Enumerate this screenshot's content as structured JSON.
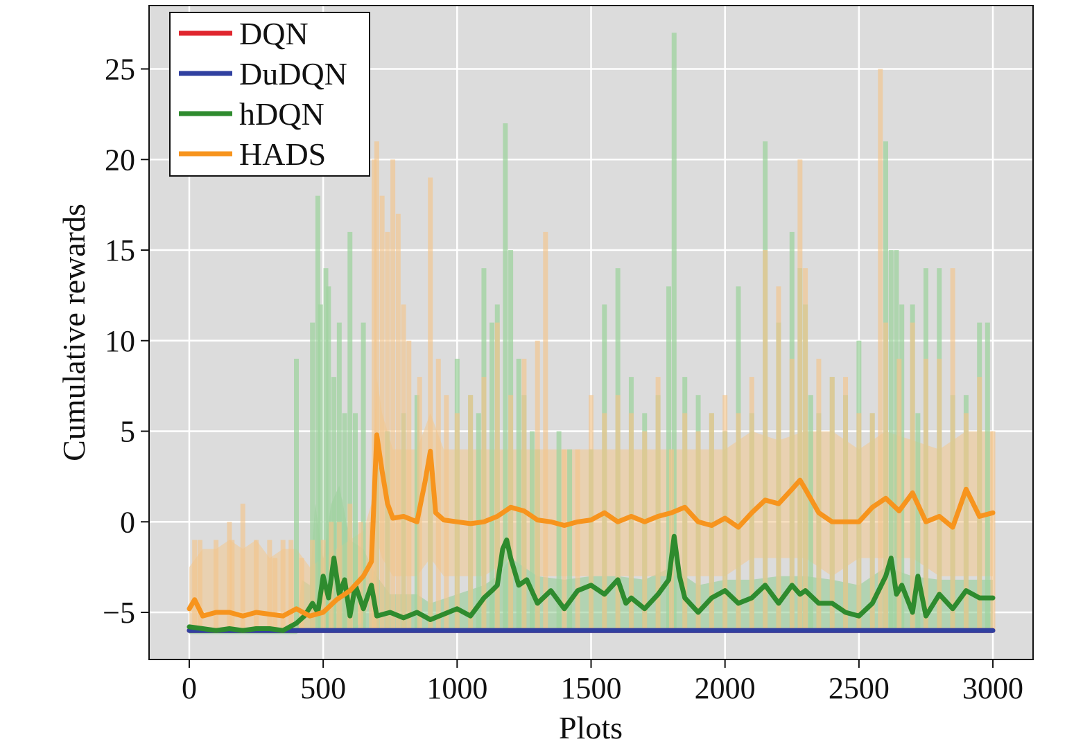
{
  "chart_data": {
    "type": "line",
    "title": "",
    "xlabel": "Plots",
    "ylabel": "Cumulative rewards",
    "xlim": [
      -150,
      3150
    ],
    "ylim": [
      -7.6,
      28.5
    ],
    "xticks": [
      0,
      500,
      1000,
      1500,
      2000,
      2500,
      3000
    ],
    "yticks": [
      -5,
      0,
      5,
      10,
      15,
      20,
      25
    ],
    "xtick_labels": [
      "0",
      "500",
      "1000",
      "1500",
      "2000",
      "2500",
      "3000"
    ],
    "ytick_labels": [
      "−5",
      "0",
      "5",
      "10",
      "15",
      "20",
      "25"
    ],
    "grid": true,
    "legend_position": "top-left",
    "background": "#dcdcdc",
    "series": [
      {
        "name": "DQN",
        "color": "#e0262e",
        "x": [
          0,
          3000
        ],
        "y": [
          -6.0,
          -6.0
        ]
      },
      {
        "name": "DuDQN",
        "color": "#3040a0",
        "x": [
          0,
          3000
        ],
        "y": [
          -6.0,
          -6.0
        ]
      },
      {
        "name": "hDQN",
        "color": "#2e8b2e",
        "x": [
          0,
          50,
          100,
          150,
          200,
          250,
          300,
          350,
          400,
          430,
          460,
          480,
          500,
          520,
          540,
          560,
          580,
          600,
          620,
          650,
          680,
          700,
          750,
          800,
          850,
          900,
          950,
          1000,
          1050,
          1100,
          1130,
          1150,
          1170,
          1185,
          1200,
          1230,
          1260,
          1300,
          1350,
          1400,
          1450,
          1500,
          1550,
          1600,
          1630,
          1650,
          1700,
          1750,
          1790,
          1810,
          1830,
          1850,
          1900,
          1950,
          2000,
          2050,
          2100,
          2150,
          2200,
          2250,
          2280,
          2300,
          2350,
          2400,
          2450,
          2500,
          2550,
          2600,
          2620,
          2640,
          2660,
          2700,
          2720,
          2750,
          2800,
          2850,
          2900,
          2950,
          3000
        ],
        "y": [
          -5.8,
          -5.9,
          -6.0,
          -5.9,
          -6.0,
          -5.9,
          -5.9,
          -6.0,
          -5.6,
          -5.2,
          -4.5,
          -5.0,
          -3.0,
          -4.2,
          -2.0,
          -4.0,
          -3.2,
          -5.2,
          -3.5,
          -4.8,
          -3.5,
          -5.2,
          -5.0,
          -5.3,
          -5.0,
          -5.4,
          -5.1,
          -4.8,
          -5.2,
          -4.2,
          -3.8,
          -3.5,
          -1.5,
          -1.0,
          -2.0,
          -3.5,
          -3.2,
          -4.5,
          -3.8,
          -4.8,
          -3.8,
          -3.5,
          -4.0,
          -3.2,
          -4.5,
          -4.2,
          -4.8,
          -4.0,
          -3.2,
          -0.8,
          -3.0,
          -4.2,
          -5.0,
          -4.2,
          -3.8,
          -4.5,
          -4.2,
          -3.5,
          -4.5,
          -3.5,
          -4.0,
          -3.8,
          -4.5,
          -4.5,
          -5.0,
          -5.2,
          -4.5,
          -3.0,
          -2.0,
          -4.0,
          -3.5,
          -5.0,
          -3.0,
          -5.2,
          -4.0,
          -4.8,
          -3.8,
          -4.2,
          -4.2
        ]
      },
      {
        "name": "HADS",
        "color": "#f7941d",
        "x": [
          0,
          20,
          50,
          100,
          150,
          200,
          250,
          300,
          350,
          400,
          450,
          500,
          550,
          600,
          650,
          680,
          700,
          720,
          740,
          760,
          800,
          850,
          880,
          900,
          920,
          950,
          1000,
          1050,
          1100,
          1150,
          1200,
          1250,
          1300,
          1350,
          1400,
          1450,
          1500,
          1550,
          1600,
          1650,
          1700,
          1750,
          1800,
          1850,
          1900,
          1950,
          2000,
          2050,
          2100,
          2150,
          2200,
          2250,
          2280,
          2300,
          2350,
          2400,
          2450,
          2500,
          2550,
          2600,
          2650,
          2700,
          2750,
          2800,
          2850,
          2900,
          2950,
          3000
        ],
        "y": [
          -4.8,
          -4.3,
          -5.2,
          -5.0,
          -5.0,
          -5.2,
          -5.0,
          -5.1,
          -5.2,
          -4.8,
          -5.2,
          -5.0,
          -4.3,
          -3.8,
          -3.0,
          -2.2,
          4.8,
          2.8,
          1.0,
          0.2,
          0.3,
          0.0,
          2.2,
          3.9,
          0.5,
          0.1,
          0.0,
          -0.1,
          0.0,
          0.3,
          0.8,
          0.6,
          0.1,
          0.0,
          -0.2,
          0.0,
          0.1,
          0.5,
          0.0,
          0.3,
          0.0,
          0.3,
          0.5,
          0.8,
          0.0,
          -0.2,
          0.2,
          -0.3,
          0.5,
          1.2,
          1.0,
          1.8,
          2.3,
          1.8,
          0.5,
          0.0,
          0.0,
          0.0,
          0.8,
          1.3,
          0.6,
          1.6,
          0.0,
          0.3,
          -0.3,
          1.8,
          0.3,
          0.5
        ]
      }
    ],
    "bands": [
      {
        "name": "hDQN",
        "color": "#8fcc8f",
        "opacity": 0.55,
        "x": [
          0,
          400,
          420,
          450,
          470,
          500,
          530,
          560,
          600,
          650,
          700,
          750,
          800,
          850,
          900,
          1000,
          1100,
          1150,
          1200,
          1300,
          1400,
          1500,
          1600,
          1700,
          1800,
          1850,
          1900,
          2000,
          2100,
          2200,
          2300,
          2400,
          2500,
          2600,
          2700,
          2800,
          2900,
          3000
        ],
        "lo": [
          -6.2,
          -6.2,
          -6.0,
          -6.0,
          -6.0,
          -6.0,
          -6.0,
          -6.0,
          -6.0,
          -6.0,
          -6.0,
          -6.0,
          -6.0,
          -6.0,
          -6.0,
          -6.0,
          -6.0,
          -6.0,
          -6.0,
          -6.0,
          -6.0,
          -6.0,
          -6.0,
          -6.0,
          -6.0,
          -6.0,
          -6.0,
          -6.0,
          -6.0,
          -6.0,
          -6.0,
          -6.0,
          -6.0,
          -6.0,
          -6.0,
          -6.0,
          -6.0,
          -6.0
        ],
        "hi": [
          -6.0,
          -6.0,
          -3.2,
          -3.5,
          1.0,
          -2.0,
          1.0,
          2.0,
          -1.0,
          -1.5,
          -3.0,
          -4.0,
          -4.0,
          -4.0,
          -4.5,
          -4.0,
          -3.5,
          -3.0,
          -2.0,
          -3.0,
          -3.2,
          -3.0,
          -3.0,
          -3.2,
          -2.5,
          -3.0,
          -3.5,
          -3.2,
          -3.2,
          -3.0,
          -3.0,
          -3.2,
          -3.5,
          -2.5,
          -3.0,
          -3.2,
          -3.2,
          -3.2
        ]
      },
      {
        "name": "HADS",
        "color": "#f2c995",
        "opacity": 0.6,
        "x": [
          0,
          50,
          100,
          150,
          200,
          250,
          300,
          350,
          400,
          450,
          500,
          550,
          600,
          650,
          680,
          700,
          720,
          760,
          800,
          850,
          900,
          950,
          1000,
          1100,
          1200,
          1300,
          1400,
          1500,
          1600,
          1700,
          1800,
          1900,
          2000,
          2100,
          2200,
          2300,
          2400,
          2500,
          2600,
          2700,
          2800,
          2900,
          3000
        ],
        "lo": [
          -6.0,
          -6.0,
          -6.0,
          -6.0,
          -6.0,
          -6.0,
          -6.0,
          -6.0,
          -6.0,
          -6.0,
          -6.0,
          -6.0,
          -6.0,
          -5.5,
          -4.0,
          -1.0,
          -2.0,
          -3.0,
          -3.0,
          -3.0,
          -2.0,
          -3.0,
          -3.0,
          -3.0,
          -2.0,
          -3.0,
          -3.0,
          -3.0,
          -3.0,
          -3.0,
          -3.0,
          -3.0,
          -3.0,
          -2.0,
          -2.0,
          -2.0,
          -3.0,
          -2.0,
          -2.0,
          -2.0,
          -3.0,
          -3.0,
          -3.0
        ],
        "hi": [
          -2.5,
          -1.5,
          -1.5,
          -1.0,
          -1.5,
          -1.0,
          -2.0,
          -1.5,
          -1.5,
          -2.5,
          -2.0,
          -1.5,
          -1.0,
          -0.5,
          1.0,
          8.0,
          6.0,
          4.0,
          4.0,
          4.0,
          6.0,
          4.0,
          4.0,
          4.0,
          4.0,
          4.0,
          4.0,
          4.0,
          4.0,
          4.0,
          4.0,
          4.0,
          4.0,
          5.0,
          4.5,
          5.0,
          5.0,
          4.0,
          5.0,
          4.5,
          4.0,
          5.0,
          5.0
        ]
      }
    ],
    "spikes": [
      {
        "name": "hDQN",
        "color": "#9fd39f",
        "opacity": 0.75,
        "width": 7,
        "points": [
          [
            400,
            9
          ],
          [
            460,
            11
          ],
          [
            480,
            18
          ],
          [
            490,
            12
          ],
          [
            510,
            14
          ],
          [
            520,
            13
          ],
          [
            540,
            8
          ],
          [
            560,
            11
          ],
          [
            580,
            6
          ],
          [
            600,
            16
          ],
          [
            620,
            6
          ],
          [
            650,
            11
          ],
          [
            700,
            3
          ],
          [
            740,
            5
          ],
          [
            800,
            6
          ],
          [
            850,
            7
          ],
          [
            900,
            3
          ],
          [
            1000,
            9
          ],
          [
            1050,
            7
          ],
          [
            1080,
            6
          ],
          [
            1100,
            14
          ],
          [
            1130,
            11
          ],
          [
            1150,
            12
          ],
          [
            1180,
            22
          ],
          [
            1200,
            15
          ],
          [
            1230,
            9
          ],
          [
            1250,
            7
          ],
          [
            1280,
            5
          ],
          [
            1300,
            4
          ],
          [
            1380,
            5
          ],
          [
            1420,
            4
          ],
          [
            1500,
            4
          ],
          [
            1550,
            12
          ],
          [
            1600,
            14
          ],
          [
            1650,
            8
          ],
          [
            1700,
            6
          ],
          [
            1750,
            7
          ],
          [
            1790,
            13
          ],
          [
            1810,
            27
          ],
          [
            1850,
            8
          ],
          [
            1900,
            7
          ],
          [
            1950,
            6
          ],
          [
            2000,
            5
          ],
          [
            2050,
            13
          ],
          [
            2100,
            6
          ],
          [
            2150,
            21
          ],
          [
            2200,
            11
          ],
          [
            2250,
            16
          ],
          [
            2280,
            14
          ],
          [
            2300,
            12
          ],
          [
            2320,
            7
          ],
          [
            2350,
            6
          ],
          [
            2400,
            8
          ],
          [
            2450,
            7
          ],
          [
            2500,
            10
          ],
          [
            2550,
            6
          ],
          [
            2600,
            21
          ],
          [
            2620,
            15
          ],
          [
            2640,
            15
          ],
          [
            2660,
            12
          ],
          [
            2700,
            12
          ],
          [
            2720,
            6
          ],
          [
            2750,
            14
          ],
          [
            2800,
            14
          ],
          [
            2850,
            7
          ],
          [
            2900,
            7
          ],
          [
            2950,
            11
          ],
          [
            2980,
            11
          ]
        ]
      },
      {
        "name": "HADS",
        "color": "#f3c48c",
        "opacity": 0.65,
        "width": 7,
        "points": [
          [
            20,
            -1
          ],
          [
            40,
            -1
          ],
          [
            100,
            -1
          ],
          [
            150,
            0
          ],
          [
            160,
            -1
          ],
          [
            200,
            1
          ],
          [
            250,
            -1
          ],
          [
            300,
            -1
          ],
          [
            320,
            -2
          ],
          [
            350,
            -1
          ],
          [
            380,
            -1
          ],
          [
            420,
            -2
          ],
          [
            460,
            -1
          ],
          [
            500,
            -1
          ],
          [
            530,
            0
          ],
          [
            560,
            0
          ],
          [
            600,
            1
          ],
          [
            640,
            0
          ],
          [
            680,
            0
          ],
          [
            690,
            20
          ],
          [
            700,
            21
          ],
          [
            720,
            18
          ],
          [
            740,
            16
          ],
          [
            760,
            20
          ],
          [
            780,
            17
          ],
          [
            800,
            12
          ],
          [
            820,
            10
          ],
          [
            860,
            8
          ],
          [
            900,
            19
          ],
          [
            930,
            9
          ],
          [
            960,
            7
          ],
          [
            1000,
            6
          ],
          [
            1050,
            7
          ],
          [
            1100,
            8
          ],
          [
            1150,
            11
          ],
          [
            1200,
            7
          ],
          [
            1250,
            9
          ],
          [
            1300,
            10
          ],
          [
            1330,
            16
          ],
          [
            1400,
            4
          ],
          [
            1450,
            4
          ],
          [
            1500,
            7
          ],
          [
            1550,
            6
          ],
          [
            1600,
            7
          ],
          [
            1650,
            6
          ],
          [
            1700,
            5
          ],
          [
            1750,
            8
          ],
          [
            1800,
            4
          ],
          [
            1850,
            6
          ],
          [
            1900,
            5
          ],
          [
            1950,
            6
          ],
          [
            2000,
            7
          ],
          [
            2050,
            6
          ],
          [
            2100,
            8
          ],
          [
            2150,
            15
          ],
          [
            2200,
            13
          ],
          [
            2250,
            9
          ],
          [
            2280,
            20
          ],
          [
            2300,
            14
          ],
          [
            2350,
            9
          ],
          [
            2400,
            8
          ],
          [
            2450,
            8
          ],
          [
            2500,
            6
          ],
          [
            2550,
            6
          ],
          [
            2580,
            25
          ],
          [
            2600,
            11
          ],
          [
            2650,
            9
          ],
          [
            2700,
            11
          ],
          [
            2750,
            9
          ],
          [
            2800,
            9
          ],
          [
            2850,
            14
          ],
          [
            2900,
            6
          ],
          [
            2950,
            8
          ],
          [
            3000,
            5
          ]
        ]
      }
    ]
  }
}
